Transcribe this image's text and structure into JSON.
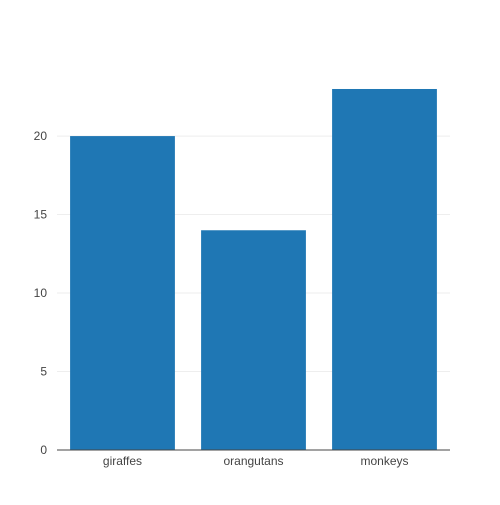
{
  "chart_data": {
    "type": "bar",
    "categories": [
      "giraffes",
      "orangutans",
      "monkeys"
    ],
    "values": [
      20,
      14,
      23
    ],
    "ylim": [
      0,
      24.21
    ],
    "yticks": [
      0,
      5,
      10,
      15,
      20
    ],
    "grid": true,
    "title": "",
    "xlabel": "",
    "ylabel": ""
  },
  "colors": {
    "bar": "#1f77b4",
    "grid": "#eeeeee",
    "axis_line": "#444444",
    "tick_text": "#444444"
  }
}
